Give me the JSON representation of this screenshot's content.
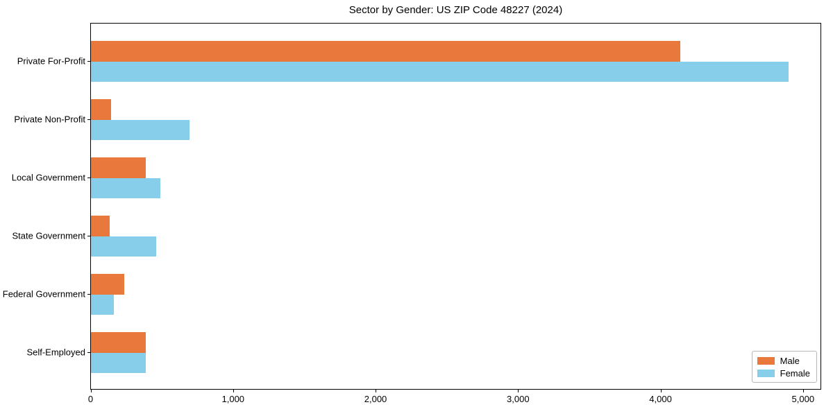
{
  "chart_data": {
    "type": "bar",
    "orientation": "horizontal",
    "title": "Sector by Gender: US ZIP Code 48227 (2024)",
    "categories": [
      "Private For-Profit",
      "Private Non-Profit",
      "Local Government",
      "State Government",
      "Federal Government",
      "Self-Employed"
    ],
    "series": [
      {
        "name": "Male",
        "color": "#e8783c",
        "values": [
          4140,
          140,
          385,
          130,
          235,
          385
        ]
      },
      {
        "name": "Female",
        "color": "#87ceeb",
        "values": [
          4900,
          690,
          490,
          460,
          160,
          385
        ]
      }
    ],
    "xlabel": "",
    "ylabel": "",
    "xlim": [
      0,
      5125
    ],
    "xticks": [
      0,
      1000,
      2000,
      3000,
      4000,
      5000
    ],
    "xtick_labels": [
      "0",
      "1,000",
      "2,000",
      "3,000",
      "4,000",
      "5,000"
    ],
    "grid": false,
    "background": "#ffffff",
    "axis_color": "#000000",
    "text_color": "#000000",
    "legend": {
      "position": "lower right",
      "entries": [
        "Male",
        "Female"
      ]
    }
  }
}
